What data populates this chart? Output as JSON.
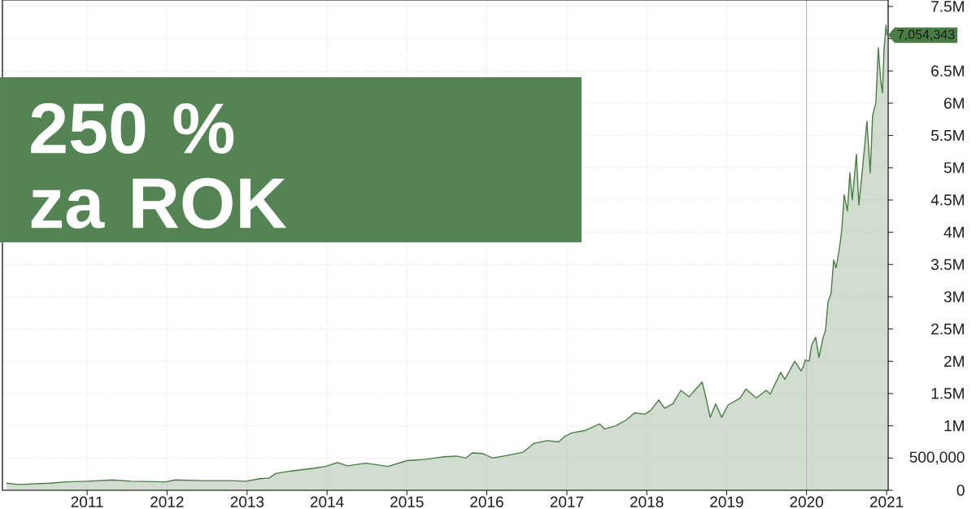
{
  "chart_data": {
    "type": "area",
    "title": "250 %",
    "subtitle": "za ROK",
    "x": [
      "2009-12-28",
      "2010-02-23",
      "2010-07-16",
      "2010-09-26",
      "2011-01-01",
      "2011-04-26",
      "2011-07-22",
      "2011-12-27",
      "2012-02-06",
      "2012-06-15",
      "2012-10-23",
      "2012-12-25",
      "2013-02-27",
      "2013-04-13",
      "2013-05-11",
      "2013-07-22",
      "2013-10-30",
      "2013-12-25",
      "2014-02-18",
      "2014-04-04",
      "2014-06-28",
      "2014-10-07",
      "2014-12-31",
      "2015-03-27",
      "2015-06-20",
      "2015-08-17",
      "2015-09-28",
      "2015-10-27",
      "2015-12-14",
      "2016-01-28",
      "2016-04-04",
      "2016-06-14",
      "2016-08-05",
      "2016-10-04",
      "2016-11-24",
      "2016-12-24",
      "2017-01-24",
      "2017-03-28",
      "2017-05-30",
      "2017-06-22",
      "2017-08-12",
      "2017-09-30",
      "2017-11-06",
      "2017-12-24",
      "2018-01-19",
      "2018-02-25",
      "2018-03-23",
      "2018-04-30",
      "2018-06-06",
      "2018-07-13",
      "2018-09-11",
      "2018-09-29",
      "2018-10-18",
      "2018-11-12",
      "2018-12-09",
      "2019-01-07",
      "2019-03-04",
      "2019-03-30",
      "2019-05-17",
      "2019-07-01",
      "2019-07-19",
      "2019-09-05",
      "2019-09-24",
      "2019-11-08",
      "2019-12-07",
      "2019-12-19",
      "2019-12-26",
      "2020-01-13",
      "2020-01-24",
      "2020-02-12",
      "2020-02-27",
      "2020-03-17",
      "2020-03-28",
      "2020-04-08",
      "2020-04-22",
      "2020-05-04",
      "2020-05-15",
      "2020-05-30",
      "2020-06-10",
      "2020-06-21",
      "2020-07-06",
      "2020-07-17",
      "2020-07-28",
      "2020-08-16",
      "2020-08-27",
      "2020-09-11",
      "2020-10-03",
      "2020-10-18",
      "2020-10-29",
      "2020-11-13",
      "2020-11-24",
      "2020-12-05",
      "2020-12-13",
      "2020-12-20",
      "2020-12-29",
      "2021-01-03"
    ],
    "series": [
      {
        "color": "#4a7c45",
        "values": [
          110000,
          90000,
          110000,
          130000,
          140000,
          160000,
          140000,
          130000,
          160000,
          150000,
          150000,
          140000,
          180000,
          190000,
          260000,
          300000,
          340000,
          370000,
          430000,
          380000,
          420000,
          370000,
          460000,
          480000,
          520000,
          530000,
          500000,
          580000,
          570000,
          500000,
          540000,
          590000,
          730000,
          770000,
          750000,
          840000,
          890000,
          930000,
          1030000,
          950000,
          1000000,
          1090000,
          1200000,
          1180000,
          1240000,
          1400000,
          1270000,
          1340000,
          1550000,
          1450000,
          1680000,
          1430000,
          1130000,
          1340000,
          1130000,
          1320000,
          1430000,
          1570000,
          1430000,
          1550000,
          1490000,
          1830000,
          1720000,
          2000000,
          1850000,
          1930000,
          2020000,
          2000000,
          2250000,
          2370000,
          2060000,
          2370000,
          2480000,
          2920000,
          3050000,
          3570000,
          3450000,
          3740000,
          4040000,
          4580000,
          4330000,
          4920000,
          4500000,
          5210000,
          4420000,
          4920000,
          5720000,
          4920000,
          5810000,
          6010000,
          6860000,
          6350000,
          6160000,
          6820000,
          7210000,
          7054343
        ]
      }
    ],
    "xlim": [
      "2009-12-10",
      "2021-01-08"
    ],
    "xticks": [
      "2011",
      "2012",
      "2013",
      "2014",
      "2015",
      "2016",
      "2017",
      "2018",
      "2019",
      "2020",
      "2021"
    ],
    "ylim": [
      0,
      7600000
    ],
    "yticks": [
      0,
      {
        "value": 500000,
        "label": "500,000"
      },
      {
        "value": 1000000,
        "label": "1M"
      },
      {
        "value": 1500000,
        "label": "1.5M"
      },
      {
        "value": 2000000,
        "label": "2M"
      },
      {
        "value": 2500000,
        "label": "2.5M"
      },
      {
        "value": 3000000,
        "label": "3M"
      },
      {
        "value": 3500000,
        "label": "3.5M"
      },
      {
        "value": 4000000,
        "label": "4M"
      },
      {
        "value": 4500000,
        "label": "4.5M"
      },
      {
        "value": 5000000,
        "label": "5M"
      },
      {
        "value": 5500000,
        "label": "5.5M"
      },
      {
        "value": 6000000,
        "label": "6M"
      },
      {
        "value": 6500000,
        "label": "6.5M"
      },
      {
        "value": 7000000,
        "label": null
      },
      {
        "value": 7500000,
        "label": "7.5M"
      }
    ],
    "grid": true,
    "ref_lines": [
      {
        "axis": "x",
        "value": "2020-01-01",
        "color": "#b4b4b4"
      }
    ],
    "annotations": [
      {
        "text": "7,054,343",
        "x": "2021-01-03",
        "y": 7054343
      }
    ]
  }
}
